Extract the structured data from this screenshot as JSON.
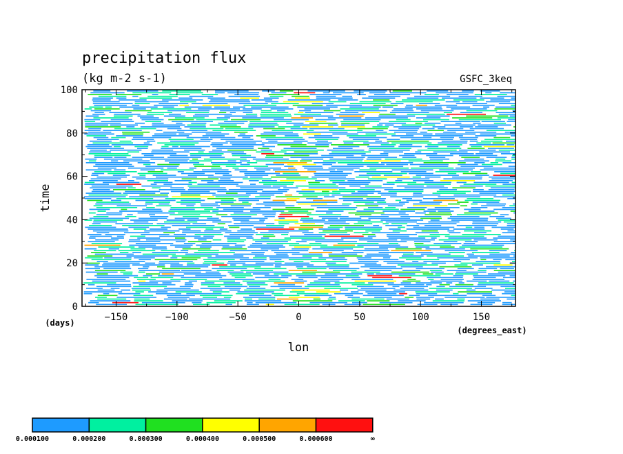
{
  "chart_data": {
    "type": "heatmap",
    "title": "precipitation flux",
    "subtitle": "(kg m-2 s-1)",
    "dataset_label": "GSFC_3keq",
    "xlabel": "lon",
    "xunits": "(degrees_east)",
    "ylabel": "time",
    "yunits": "(days)",
    "xlim": [
      -178,
      178
    ],
    "ylim": [
      0,
      100
    ],
    "xticks": [
      -150,
      -100,
      -50,
      0,
      50,
      100,
      150
    ],
    "yticks": [
      0,
      20,
      40,
      60,
      80,
      100
    ],
    "colorbar": {
      "levels": [
        "0.000100",
        "0.000200",
        "0.000300",
        "0.000400",
        "0.000500",
        "0.000600",
        "∞"
      ],
      "colors": [
        "#1e9bff",
        "#00f0a0",
        "#20e020",
        "#ffff00",
        "#ffa500",
        "#ff1010"
      ]
    },
    "grid": false
  }
}
